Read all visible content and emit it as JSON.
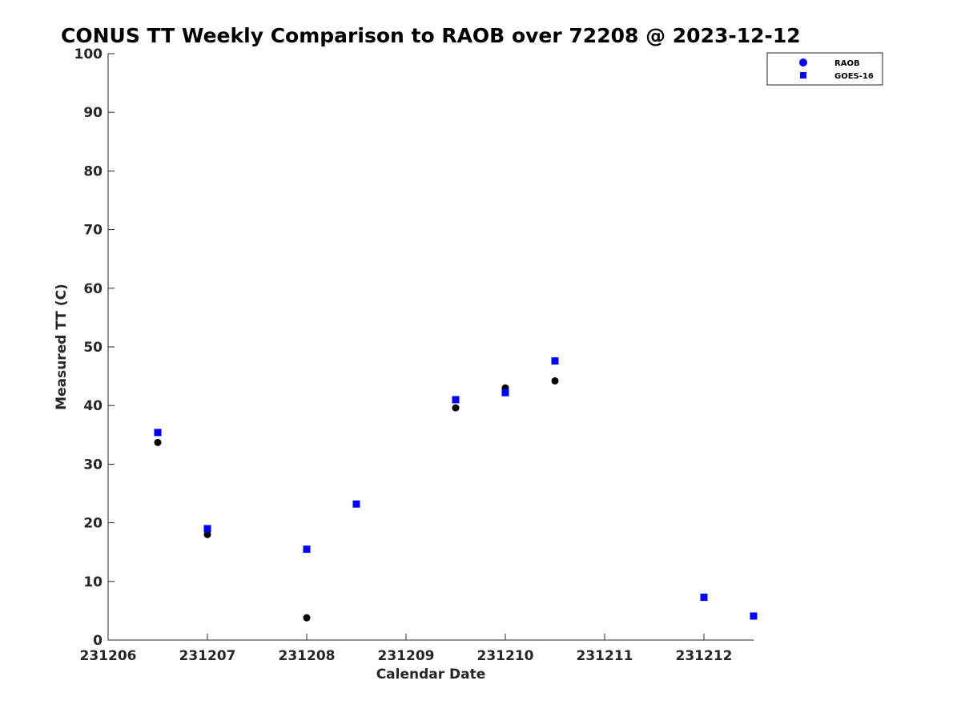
{
  "chart_data": {
    "type": "scatter",
    "title": "CONUS TT Weekly Comparison to RAOB over 72208 @ 2023-12-12",
    "xlabel": "Calendar Date",
    "ylabel": "Measured TT (C)",
    "xlim": [
      231206,
      231212.5
    ],
    "ylim": [
      0,
      100
    ],
    "x_ticks": [
      231206,
      231207,
      231208,
      231209,
      231210,
      231211,
      231212
    ],
    "x_tick_labels": [
      "231206",
      "231207",
      "231208",
      "231209",
      "231210",
      "231211",
      "231212"
    ],
    "y_ticks": [
      0,
      10,
      20,
      30,
      40,
      50,
      60,
      70,
      80,
      90,
      100
    ],
    "y_tick_labels": [
      "0",
      "10",
      "20",
      "30",
      "40",
      "50",
      "60",
      "70",
      "80",
      "90",
      "100"
    ],
    "grid": false,
    "legend_position": "top-right",
    "series": [
      {
        "name": "RAOB",
        "marker": "circle",
        "color": "#000000",
        "legend_color": "#0000ff",
        "points": [
          {
            "x": 231206.5,
            "y": 33.7
          },
          {
            "x": 231207.0,
            "y": 18.0
          },
          {
            "x": 231208.0,
            "y": 3.8
          },
          {
            "x": 231209.5,
            "y": 39.6
          },
          {
            "x": 231210.0,
            "y": 43.0
          },
          {
            "x": 231210.5,
            "y": 44.2
          }
        ]
      },
      {
        "name": "GOES-16",
        "marker": "square",
        "color": "#0000ff",
        "legend_color": "#0000ff",
        "points": [
          {
            "x": 231206.5,
            "y": 35.4
          },
          {
            "x": 231207.0,
            "y": 19.0
          },
          {
            "x": 231208.0,
            "y": 15.5
          },
          {
            "x": 231208.5,
            "y": 23.2
          },
          {
            "x": 231209.5,
            "y": 41.0
          },
          {
            "x": 231210.0,
            "y": 42.2
          },
          {
            "x": 231210.5,
            "y": 47.6
          },
          {
            "x": 231212.0,
            "y": 7.3
          },
          {
            "x": 231212.5,
            "y": 4.1
          }
        ]
      }
    ]
  }
}
